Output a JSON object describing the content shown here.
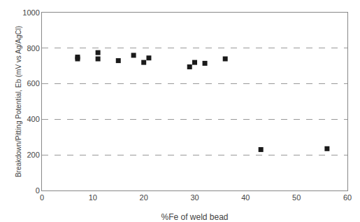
{
  "chart_data": {
    "type": "scatter",
    "x": [
      7,
      7,
      11,
      11,
      15,
      18,
      20,
      21,
      29,
      30,
      32,
      36,
      43,
      56
    ],
    "values": [
      750,
      740,
      740,
      775,
      730,
      760,
      720,
      745,
      695,
      720,
      715,
      740,
      230,
      235
    ],
    "color": "#1a1a1a",
    "marker": "square",
    "xlabel": "%Fe of weld bead",
    "ylabel": "Breakdown/Pitting Potential, Eb (mV vs Ag/AgCl)",
    "xlim": [
      0,
      60
    ],
    "ylim": [
      0,
      1000
    ],
    "xticks": [
      0,
      10,
      20,
      30,
      40,
      50,
      60
    ],
    "yticks": [
      0,
      200,
      400,
      600,
      800,
      1000
    ],
    "grid": "y"
  }
}
